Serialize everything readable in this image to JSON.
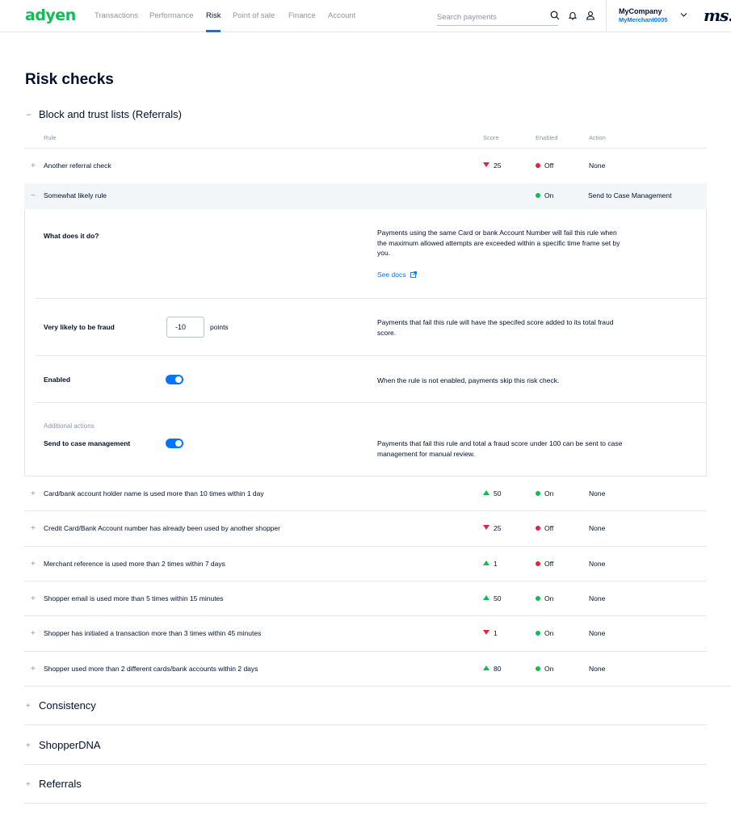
{
  "nav": {
    "logo": "adyen",
    "items": [
      {
        "label": "Transactions"
      },
      {
        "label": "Performance"
      },
      {
        "label": "Risk"
      },
      {
        "label": "Point of sale"
      },
      {
        "label": "Finance"
      },
      {
        "label": "Account"
      }
    ],
    "active_item": "Risk",
    "search_placeholder": "Search payments",
    "company": "MyCompany",
    "merchant": "MyMerchant0005",
    "brand_mark": "ms."
  },
  "page": {
    "title": "Risk checks"
  },
  "block_section": {
    "toggle": "−",
    "title": "Block and trust lists (Referrals)",
    "columns": {
      "rule": "Rule",
      "score": "Score",
      "enabled": "Enabled",
      "action": "Action"
    },
    "rows_before": [
      {
        "rule": "Another referral check",
        "score": "25",
        "score_dir": "down",
        "enabled": "Off",
        "action": "None"
      }
    ],
    "expanded": {
      "rule": "Somewhat likely rule",
      "enabled": "On",
      "action": "Send to Case Management",
      "what_label": "What does it do?",
      "what_desc": "Payments using the same Card or bank Account Number will fail this rule when the maximum allowed attempts  are exceeded within a specific time frame set by you.",
      "docs_link": "See docs",
      "fraud_label": "Very likely to be fraud",
      "points_value": "-10",
      "points_label": "points",
      "fraud_desc": "Payments that fail this rule will have the specifed score added to its total fraud score.",
      "enabled_label": "Enabled",
      "enabled_desc": "When the rule is not enabled, payments skip this risk check.",
      "additional_label": "Additional actions",
      "case_label": "Send to case management",
      "case_desc": "Payments that fail this rule and total a fraud score under 100 can be sent to case management for manual review."
    },
    "rows_after": [
      {
        "rule": "Card/bank account holder name is used more than 10 times within 1 day",
        "score": "50",
        "score_dir": "up",
        "enabled": "On",
        "action": "None"
      },
      {
        "rule": "Credit Card/Bank Account number has already been used by another shopper",
        "score": "25",
        "score_dir": "down",
        "enabled": "Off",
        "action": "None"
      },
      {
        "rule": "Merchant reference is used more than 2 times within 7 days",
        "score": "1",
        "score_dir": "up",
        "enabled": "Off",
        "action": "None"
      },
      {
        "rule": "Shopper email is used more than 5 times within 15 minutes",
        "score": "50",
        "score_dir": "up",
        "enabled": "On",
        "action": "None"
      },
      {
        "rule": "Shopper has initiated a transaction more than 3 times within 45 minutes",
        "score": "1",
        "score_dir": "down",
        "enabled": "On",
        "action": "None"
      },
      {
        "rule": "Shopper used more than 2 different cards/bank accounts within 2 days",
        "score": "80",
        "score_dir": "up",
        "enabled": "On",
        "action": "None"
      }
    ]
  },
  "collapsed_sections": [
    {
      "toggle": "+",
      "title": "Consistency"
    },
    {
      "toggle": "+",
      "title": "ShopperDNA"
    },
    {
      "toggle": "+",
      "title": "Referrals"
    }
  ],
  "colors": {
    "brand_green": "#0abf53",
    "accent_blue": "#0075ff",
    "off_red": "#e3243c",
    "text": "#00112c",
    "muted": "#8c95a6"
  }
}
